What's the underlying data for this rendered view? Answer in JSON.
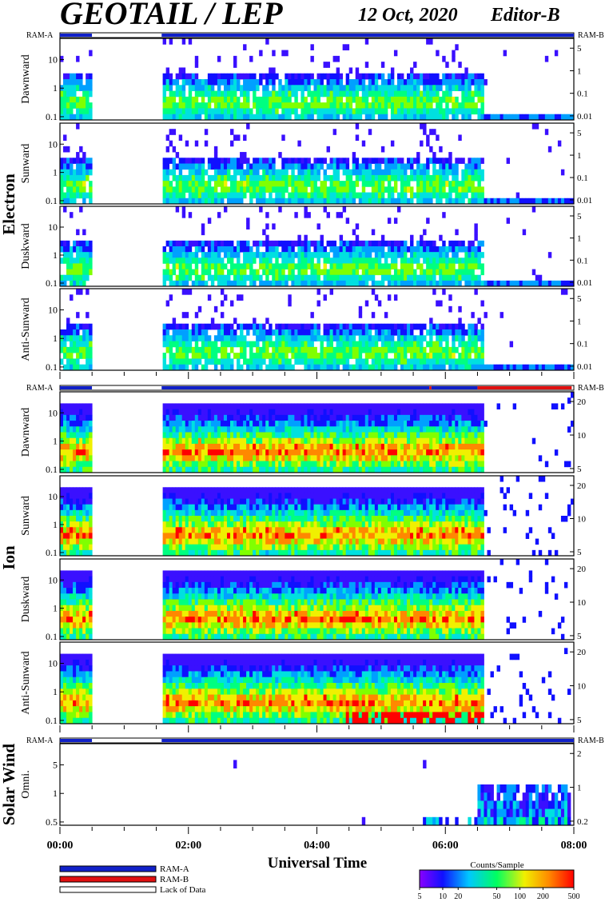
{
  "header": {
    "title": "GEOTAIL / LEP",
    "date": "12 Oct, 2020",
    "editor": "Editor-B"
  },
  "status_bar_labels": {
    "left": "RAM-A",
    "right": "RAM-B"
  },
  "sections": [
    {
      "name": "Electron",
      "panels": [
        {
          "label": "Dawnward",
          "left_ticks": [
            "10",
            "1",
            "0.1"
          ],
          "right_ticks": [
            "5",
            "1",
            "0.1",
            "0.01"
          ]
        },
        {
          "label": "Sunward",
          "left_ticks": [
            "10",
            "1",
            "0.1"
          ],
          "right_ticks": [
            "5",
            "1",
            "0.1",
            "0.01"
          ]
        },
        {
          "label": "Duskward",
          "left_ticks": [
            "10",
            "1",
            "0.1"
          ],
          "right_ticks": [
            "5",
            "1",
            "0.1",
            "0.01"
          ]
        },
        {
          "label": "Anti-Sunward",
          "left_ticks": [
            "10",
            "1",
            "0.1"
          ],
          "right_ticks": [
            "5",
            "1",
            "0.1",
            "0.01"
          ]
        }
      ]
    },
    {
      "name": "Ion",
      "panels": [
        {
          "label": "Dawnward",
          "left_ticks": [
            "10",
            "1",
            "0.1"
          ],
          "right_ticks": [
            "20",
            "10",
            "5"
          ]
        },
        {
          "label": "Sunward",
          "left_ticks": [
            "10",
            "1",
            "0.1"
          ],
          "right_ticks": [
            "20",
            "10",
            "5"
          ]
        },
        {
          "label": "Duskward",
          "left_ticks": [
            "10",
            "1",
            "0.1"
          ],
          "right_ticks": [
            "20",
            "10",
            "5"
          ]
        },
        {
          "label": "Anti-Sunward",
          "left_ticks": [
            "10",
            "1",
            "0.1"
          ],
          "right_ticks": [
            "20",
            "10",
            "5"
          ]
        }
      ]
    },
    {
      "name": "Solar Wind",
      "panels": [
        {
          "label": "Omni.",
          "left_ticks": [
            "5",
            "1",
            "0.5"
          ],
          "right_ticks": [
            "2",
            "1",
            "0.2"
          ]
        }
      ]
    }
  ],
  "x_axis": {
    "label": "Universal Time",
    "ticks": [
      "00:00",
      "02:00",
      "04:00",
      "06:00",
      "08:00"
    ]
  },
  "legend": {
    "items": [
      {
        "label": "RAM-A",
        "color": "#1020c8"
      },
      {
        "label": "RAM-B",
        "color": "#e01010"
      },
      {
        "label": "Lack of Data",
        "color": "#ffffff"
      }
    ]
  },
  "colorbar": {
    "title": "Counts/Sample",
    "ticks": [
      "5",
      "10",
      "20",
      "50",
      "100",
      "200",
      "500"
    ],
    "colors": [
      "#8a00ff",
      "#1010ff",
      "#00c8ff",
      "#00ff60",
      "#f0f000",
      "#ff8800",
      "#ff0000"
    ]
  },
  "chart_data": {
    "type": "heatmap",
    "title": "GEOTAIL / LEP",
    "xlabel": "Universal Time",
    "x_range": [
      "00:00",
      "08:00"
    ],
    "x_ticks": [
      "00:00",
      "02:00",
      "04:00",
      "06:00",
      "08:00"
    ],
    "colorbar_label": "Counts/Sample",
    "colorbar_range": [
      5,
      500
    ],
    "data_coverage": {
      "electron_gap": [
        "00:30",
        "01:35"
      ],
      "ion_gap": [
        "00:30",
        "01:35"
      ],
      "electron_mode": [
        {
          "from": "00:00",
          "to": "00:30",
          "mode": "RAM-A"
        },
        {
          "from": "00:30",
          "to": "01:35",
          "mode": "Lack of Data"
        },
        {
          "from": "01:35",
          "to": "08:00",
          "mode": "RAM-A"
        }
      ],
      "ion_mode": [
        {
          "from": "00:00",
          "to": "00:30",
          "mode": "RAM-A"
        },
        {
          "from": "00:30",
          "to": "01:35",
          "mode": "Lack of Data"
        },
        {
          "from": "01:35",
          "to": "05:45",
          "mode": "RAM-A"
        },
        {
          "from": "05:45",
          "to": "05:47",
          "mode": "RAM-B"
        },
        {
          "from": "05:47",
          "to": "06:30",
          "mode": "RAM-A"
        },
        {
          "from": "06:30",
          "to": "07:58",
          "mode": "RAM-B"
        }
      ],
      "solar_wind_mode": [
        {
          "from": "00:00",
          "to": "00:30",
          "mode": "RAM-A"
        },
        {
          "from": "00:30",
          "to": "01:35",
          "mode": "Lack of Data"
        },
        {
          "from": "01:35",
          "to": "08:00",
          "mode": "RAM-A"
        }
      ]
    }
  }
}
